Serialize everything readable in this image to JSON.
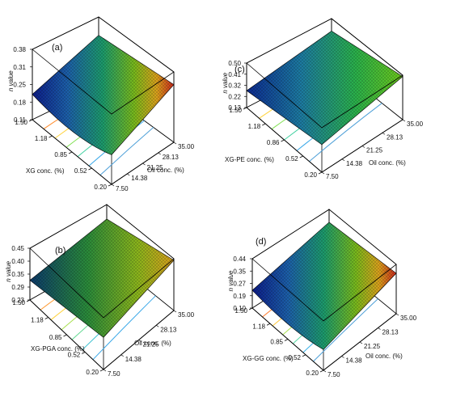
{
  "chart_data": [
    {
      "type": "surface",
      "panel_label": "(a)",
      "zlabel": "n value",
      "zticks": [
        "0.11",
        "0.18",
        "0.25",
        "0.31",
        "0.38"
      ],
      "xlabel": "XG conc. (%)",
      "xticks": [
        "1.50",
        "1.18",
        "0.85",
        "0.52",
        "0.20"
      ],
      "ylabel": "Oil conc. (%)",
      "yticks": [
        "7.50",
        "14.38",
        "21.25",
        "28.13",
        "35.00"
      ],
      "surface_shape": "bowl",
      "contour_colors": [
        "#ff8a2a",
        "#ffd23a",
        "#7fe050",
        "#40d0a0",
        "#3aa8e8",
        "#4ea0d8"
      ]
    },
    {
      "type": "surface",
      "panel_label": "(c)",
      "zlabel": "n value",
      "zticks": [
        "0.13",
        "0.22",
        "0.32",
        "0.41",
        "0.50"
      ],
      "xlabel": "XG-PE conc. (%)",
      "xticks": [
        "1.50",
        "1.18",
        "0.86",
        "0.52",
        "0.20"
      ],
      "ylabel": "Oil conc. (%)",
      "yticks": [
        "7.50",
        "14.38",
        "21.25",
        "28.13",
        "35.00"
      ],
      "surface_shape": "plane",
      "contour_colors": [
        "#ffd23a",
        "#7fe050",
        "#40d0a0",
        "#3aa8e8",
        "#4ea0d8"
      ]
    },
    {
      "type": "surface",
      "panel_label": "(b)",
      "zlabel": "n value",
      "zticks": [
        "0.23",
        "0.29",
        "0.35",
        "0.40",
        "0.45"
      ],
      "xlabel": "XG-PGA conc. (%)",
      "xticks": [
        "1.50",
        "1.18",
        "0.85",
        "0.52",
        "0.20"
      ],
      "ylabel": "Oil conc. (%)",
      "yticks": [
        "7.50",
        "14.38",
        "21.25",
        "28.13",
        "35.00"
      ],
      "surface_shape": "plane",
      "contour_colors": [
        "#ff9a30",
        "#ffd23a",
        "#a8e050",
        "#60d890",
        "#3ac0d0",
        "#3aa8e8"
      ]
    },
    {
      "type": "surface",
      "panel_label": "(d)",
      "zlabel": "n value",
      "zticks": [
        "0.10",
        "0.19",
        "0.27",
        "0.35",
        "0.44"
      ],
      "xlabel": "XG-GG conc. (%)",
      "xticks": [
        "1.50",
        "1.18",
        "0.85",
        "0.52",
        "0.20"
      ],
      "ylabel": "Oil conc. (%)",
      "yticks": [
        "7.50",
        "14.38",
        "21.25",
        "28.13",
        "35.00"
      ],
      "surface_shape": "bowl",
      "contour_colors": [
        "#ff7a2a",
        "#ffc83a",
        "#a8e050",
        "#50d8a0",
        "#3ab0e8",
        "#4ea0d8"
      ]
    }
  ]
}
